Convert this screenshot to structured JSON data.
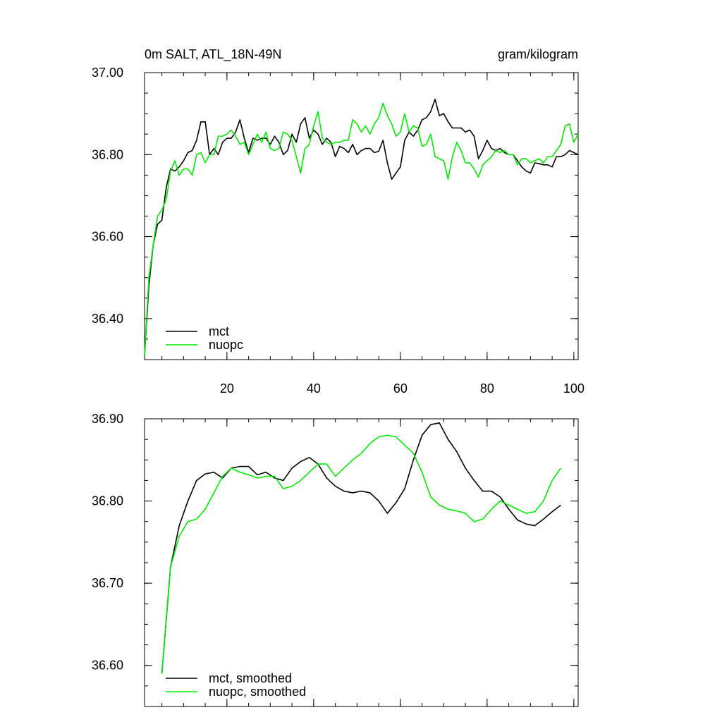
{
  "chart_data": [
    {
      "type": "line",
      "title": "0m SALT, ATL_18N-49N",
      "subtitle": "gram/kilogram",
      "x": [
        1,
        2,
        3,
        4,
        5,
        6,
        7,
        8,
        9,
        10,
        11,
        12,
        13,
        14,
        15,
        16,
        17,
        18,
        19,
        20,
        21,
        22,
        23,
        24,
        25,
        26,
        27,
        28,
        29,
        30,
        31,
        32,
        33,
        34,
        35,
        36,
        37,
        38,
        39,
        40,
        41,
        42,
        43,
        44,
        45,
        46,
        47,
        48,
        49,
        50,
        51,
        52,
        53,
        54,
        55,
        56,
        57,
        58,
        59,
        60,
        61,
        62,
        63,
        64,
        65,
        66,
        67,
        68,
        69,
        70,
        71,
        72,
        73,
        74,
        75,
        76,
        77,
        78,
        79,
        80,
        81,
        82,
        83,
        84,
        85,
        86,
        87,
        88,
        89,
        90,
        91,
        92,
        93,
        94,
        95,
        96,
        97,
        98,
        99,
        100,
        101
      ],
      "series": [
        {
          "name": "mct",
          "color": "#000000",
          "values": [
            36.31,
            36.48,
            36.58,
            36.63,
            36.64,
            36.72,
            36.765,
            36.76,
            36.77,
            36.785,
            36.805,
            36.81,
            36.835,
            36.88,
            36.88,
            36.8,
            36.815,
            36.8,
            36.83,
            36.84,
            36.84,
            36.855,
            36.885,
            36.84,
            36.805,
            36.84,
            36.835,
            36.84,
            36.84,
            36.825,
            36.845,
            36.83,
            36.8,
            36.81,
            36.85,
            36.83,
            36.875,
            36.89,
            36.84,
            36.86,
            36.85,
            36.825,
            36.84,
            36.83,
            36.795,
            36.82,
            36.815,
            36.805,
            36.825,
            36.8,
            36.81,
            36.815,
            36.815,
            36.805,
            36.808,
            36.835,
            36.78,
            36.74,
            36.755,
            36.77,
            36.835,
            36.855,
            36.845,
            36.86,
            36.885,
            36.89,
            36.905,
            36.935,
            36.895,
            36.9,
            36.88,
            36.865,
            36.865,
            36.865,
            36.855,
            36.86,
            36.845,
            36.79,
            36.81,
            36.835,
            36.815,
            36.81,
            36.815,
            36.805,
            36.8,
            36.8,
            36.785,
            36.77,
            36.76,
            36.755,
            36.78,
            36.778,
            36.775,
            36.775,
            36.77,
            36.795,
            36.795,
            36.8,
            36.81,
            36.805,
            36.8
          ]
        },
        {
          "name": "nuopc",
          "color": "#00ee00",
          "values": [
            36.31,
            36.5,
            36.58,
            36.65,
            36.665,
            36.69,
            36.76,
            36.785,
            36.75,
            36.765,
            36.765,
            36.75,
            36.8,
            36.805,
            36.78,
            36.8,
            36.8,
            36.845,
            36.845,
            36.85,
            36.86,
            36.845,
            36.825,
            36.83,
            36.8,
            36.825,
            36.85,
            36.83,
            36.855,
            36.815,
            36.81,
            36.815,
            36.855,
            36.85,
            36.835,
            36.795,
            36.755,
            36.815,
            36.825,
            36.87,
            36.905,
            36.84,
            36.83,
            36.825,
            36.83,
            36.83,
            36.835,
            36.835,
            36.885,
            36.875,
            36.855,
            36.87,
            36.85,
            36.875,
            36.89,
            36.925,
            36.895,
            36.875,
            36.845,
            36.855,
            36.9,
            36.855,
            36.87,
            36.865,
            36.82,
            36.825,
            36.85,
            36.795,
            36.79,
            36.785,
            36.74,
            36.795,
            36.83,
            36.81,
            36.78,
            36.78,
            36.765,
            36.745,
            36.775,
            36.785,
            36.795,
            36.81,
            36.805,
            36.81,
            36.8,
            36.8,
            36.775,
            36.79,
            36.79,
            36.78,
            36.785,
            36.79,
            36.78,
            36.795,
            36.795,
            36.81,
            36.825,
            36.87,
            36.875,
            36.83,
            36.85
          ]
        }
      ],
      "xlim": [
        1,
        101
      ],
      "xticks": [
        20,
        40,
        60,
        80,
        100
      ],
      "ylim": [
        36.3,
        37.0
      ],
      "yticks": [
        {
          "value": 36.4,
          "label": "36.40"
        },
        {
          "value": 36.6,
          "label": "36.60"
        },
        {
          "value": 36.8,
          "label": "36.80"
        },
        {
          "value": 37.0,
          "label": "37.00"
        }
      ],
      "legend": "lower left",
      "show_xtick_labels": true
    },
    {
      "type": "line",
      "x": [
        5,
        7,
        9,
        11,
        13,
        15,
        17,
        19,
        21,
        23,
        25,
        27,
        29,
        31,
        33,
        35,
        37,
        39,
        41,
        43,
        45,
        47,
        49,
        51,
        53,
        55,
        57,
        59,
        61,
        63,
        65,
        67,
        69,
        71,
        73,
        75,
        77,
        79,
        81,
        83,
        85,
        87,
        89,
        91,
        93,
        95,
        97
      ],
      "series": [
        {
          "name": "mct, smoothed",
          "color": "#000000",
          "values": [
            36.59,
            36.72,
            36.77,
            36.8,
            36.825,
            36.833,
            36.835,
            36.828,
            36.84,
            36.842,
            36.842,
            36.832,
            36.835,
            36.828,
            36.825,
            36.84,
            36.848,
            36.853,
            36.845,
            36.828,
            36.818,
            36.812,
            36.81,
            36.812,
            36.81,
            36.8,
            36.785,
            36.798,
            36.815,
            36.85,
            36.88,
            36.893,
            36.895,
            36.875,
            36.86,
            36.84,
            36.825,
            36.812,
            36.812,
            36.805,
            36.79,
            36.777,
            36.772,
            36.77,
            36.778,
            36.787,
            36.795
          ]
        },
        {
          "name": "nuopc, smoothed",
          "color": "#00ee00",
          "values": [
            36.59,
            36.72,
            36.757,
            36.775,
            36.778,
            36.79,
            36.81,
            36.83,
            36.84,
            36.835,
            36.832,
            36.828,
            36.83,
            36.83,
            36.815,
            36.818,
            36.825,
            36.835,
            36.845,
            36.845,
            36.83,
            36.84,
            36.85,
            36.858,
            36.87,
            36.878,
            36.88,
            36.878,
            36.868,
            36.858,
            36.835,
            36.805,
            36.795,
            36.79,
            36.788,
            36.785,
            36.775,
            36.778,
            36.79,
            36.8,
            36.795,
            36.79,
            36.785,
            36.787,
            36.8,
            36.825,
            36.84
          ]
        }
      ],
      "xlim": [
        1,
        101
      ],
      "xticks": [
        20,
        40,
        60,
        80,
        100
      ],
      "ylim": [
        36.55,
        36.9
      ],
      "yticks": [
        {
          "value": 36.6,
          "label": "36.60"
        },
        {
          "value": 36.7,
          "label": "36.70"
        },
        {
          "value": 36.8,
          "label": "36.80"
        },
        {
          "value": 36.9,
          "label": "36.90"
        }
      ],
      "legend": "lower left",
      "show_xtick_labels": false
    }
  ]
}
